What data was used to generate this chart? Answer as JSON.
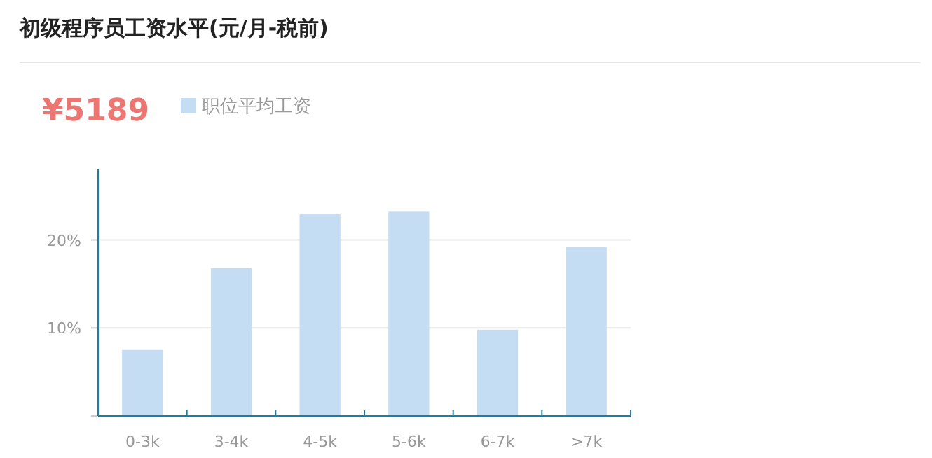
{
  "chart_data": {
    "type": "bar",
    "title": "初级程序员工资水平(元/月-税前)",
    "annotations": [
      "¥5189"
    ],
    "categories": [
      "0-3k",
      "3-4k",
      "4-5k",
      "5-6k",
      "6-7k",
      ">7k"
    ],
    "series": [
      {
        "name": "职位平均工资",
        "color": "#c5ddf2",
        "values": [
          7.5,
          16.8,
          22.9,
          23.2,
          9.8,
          19.2
        ]
      }
    ],
    "ylim": [
      0,
      28
    ],
    "yticks": [
      {
        "value": 0,
        "label": null
      },
      {
        "value": 10,
        "label": "10%"
      },
      {
        "value": 20,
        "label": "20%"
      }
    ],
    "grid": "y",
    "legend": "top left"
  }
}
